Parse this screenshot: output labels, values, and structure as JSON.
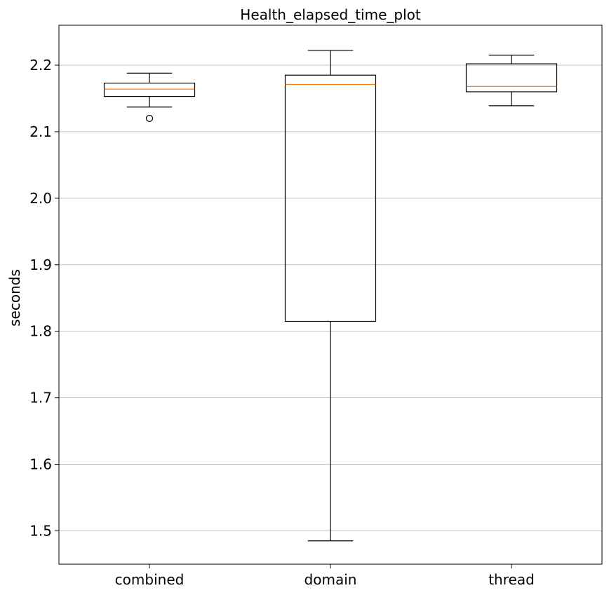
{
  "chart_data": {
    "type": "box",
    "title": "Health_elapsed_time_plot",
    "xlabel": "",
    "ylabel": "seconds",
    "ylim": [
      1.45,
      2.26
    ],
    "yticks": [
      1.5,
      1.6,
      1.7,
      1.8,
      1.9,
      2.0,
      2.1,
      2.2
    ],
    "ytick_labels": [
      "1.5",
      "1.6",
      "1.7",
      "1.8",
      "1.9",
      "2.0",
      "2.1",
      "2.2"
    ],
    "grid": "horizontal",
    "categories": [
      "combined",
      "domain",
      "thread"
    ],
    "boxes": [
      {
        "category": "combined",
        "whisker_low": 2.137,
        "q1": 2.153,
        "median": 2.164,
        "q3": 2.173,
        "whisker_high": 2.188,
        "fliers": [
          2.12
        ]
      },
      {
        "category": "domain",
        "whisker_low": 1.485,
        "q1": 1.815,
        "median": 2.171,
        "q3": 2.185,
        "whisker_high": 2.222,
        "fliers": []
      },
      {
        "category": "thread",
        "whisker_low": 2.139,
        "q1": 2.16,
        "median": 2.168,
        "q3": 2.202,
        "whisker_high": 2.215,
        "fliers": []
      }
    ],
    "colors": {
      "box": "#000000",
      "median": "#ff7f0e",
      "grid": "#b0b0b0"
    }
  }
}
